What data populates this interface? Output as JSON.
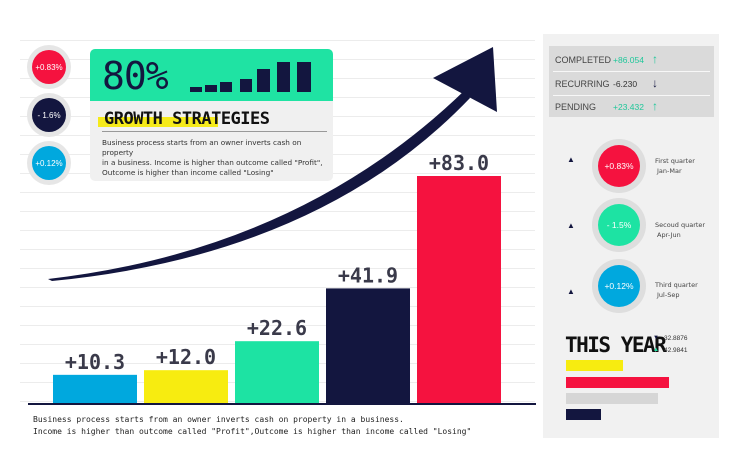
{
  "chart_data": {
    "type": "bar",
    "categories": [
      "",
      "",
      "",
      "",
      ""
    ],
    "values": [
      10.3,
      12.0,
      22.6,
      41.9,
      83.0
    ],
    "labels": [
      "+10.3",
      "+12.0",
      "+22.6",
      "+41.9",
      "+83.0"
    ],
    "colors": [
      "#00a8de",
      "#f7ec10",
      "#1de3a3",
      "#13163f",
      "#f5123f"
    ],
    "title": "GROWTH STRATEGIES",
    "xlabel": "",
    "ylabel": "",
    "ylim": [
      0,
      83
    ],
    "grid": true,
    "trend_arrow": true
  },
  "indicators": [
    {
      "label": "+0.83%",
      "color": "#f5123f"
    },
    {
      "label": "- 1.6%",
      "color": "#13163f"
    },
    {
      "label": "+0.12%",
      "color": "#00a8de"
    }
  ],
  "card": {
    "percent": "80%",
    "title": "GROWTH STRATEGIES",
    "desc_lines": [
      "Business process starts from an owner inverts cash on property",
      "in a business. Income is higher than outcome called \"Profit\",",
      "Outcome is higher than income called \"Losing\""
    ]
  },
  "bottom_text": [
    "Business process starts from an owner inverts cash on property in a business.",
    "Income is higher than outcome called \"Profit\",Outcome is higher than income called \"Losing\""
  ],
  "stats": [
    {
      "label": "COMPLETED",
      "value": "+86.054",
      "arrow": "↑",
      "value_color": "#1fc79a",
      "arrow_color": "#1fc79a"
    },
    {
      "label": "RECURRING",
      "value": "-6.230",
      "arrow": "↓",
      "value_color": "#333333",
      "arrow_color": "#13163f"
    },
    {
      "label": "PENDING",
      "value": "+23.432",
      "arrow": "↑",
      "value_color": "#1fc79a",
      "arrow_color": "#1fc79a"
    }
  ],
  "quarters": [
    {
      "pct": "+0.83%",
      "color": "#f5123f",
      "name": "First quarter",
      "months": "Jan-Mar"
    },
    {
      "pct": "- 1.5%",
      "color": "#1de3a3",
      "name": "Secoud quarter",
      "months": "Apr-Jun"
    },
    {
      "pct": "+0.12%",
      "color": "#00a8de",
      "name": "Third quarter",
      "months": "Jul-Sep"
    }
  ],
  "this_year": {
    "title": "THIS YEAR",
    "values": [
      "32.8876",
      "42.9841"
    ],
    "bars": [
      {
        "color": "#f7ec10",
        "level": 0.55
      },
      {
        "color": "#f5123f",
        "level": 1.0
      },
      {
        "color": "#d6d6d6",
        "level": 0.89
      },
      {
        "color": "#13163f",
        "level": 0.34
      }
    ]
  }
}
